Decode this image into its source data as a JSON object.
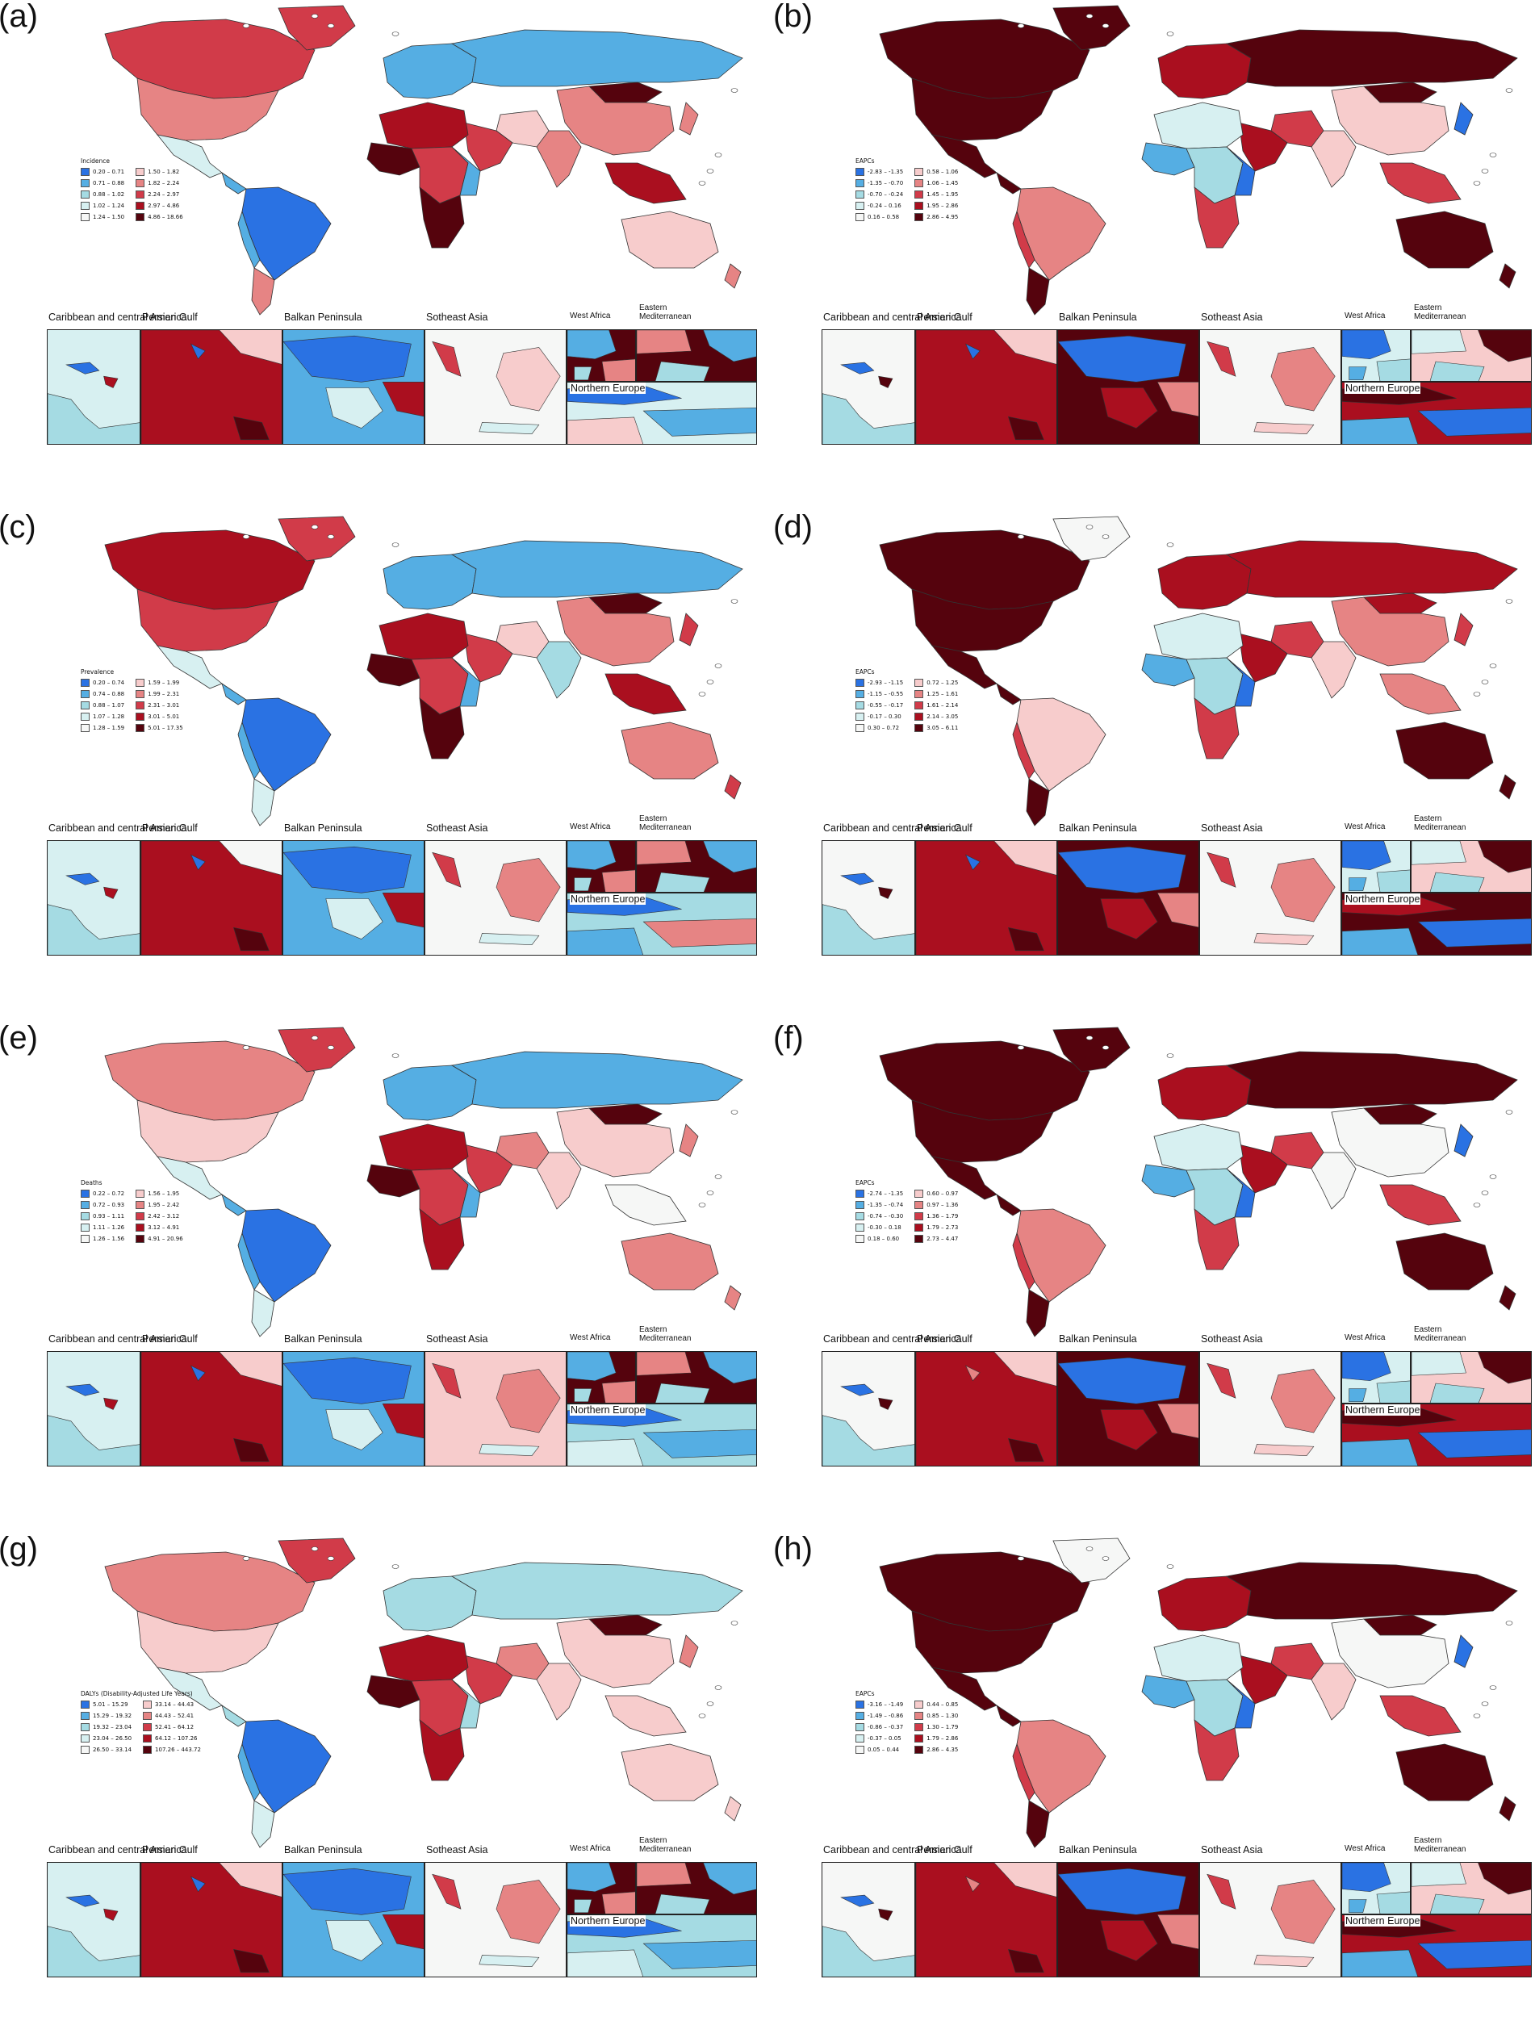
{
  "colors": {
    "blue_scale": [
      "#2a72e3",
      "#55aee3",
      "#a5dbe3",
      "#d7f0f1",
      "#f6f7f6"
    ],
    "red_scale": [
      "#f7cccc",
      "#e68484",
      "#d13b49",
      "#aa0f1f",
      "#55030d"
    ]
  },
  "inset_titles": {
    "caribbean": "Caribbean and central America",
    "persian_gulf": "Persian Gulf",
    "balkan": "Balkan Peninsula",
    "southeast_asia": "Sotheast Asia",
    "west_africa": "West Africa",
    "eastern_med": "Eastern Mediterranean",
    "northern_europe": "Northern Europe"
  },
  "panels": [
    {
      "label": "(a)",
      "legend_title": "Incidence",
      "legend": [
        "0.20 – 0.71",
        "0.71 – 0.88",
        "0.88 – 1.02",
        "1.02 – 1.24",
        "1.24 – 1.50",
        "1.50 – 1.82",
        "1.82 – 2.24",
        "2.24 – 2.97",
        "2.97 – 4.86",
        "4.86 – 18.66"
      ]
    },
    {
      "label": "(b)",
      "legend_title": "EAPCs",
      "legend": [
        "-2.83 – -1.35",
        "-1.35 – -0.70",
        "-0.70 – -0.24",
        "-0.24 – 0.16",
        "0.16 – 0.58",
        "0.58 – 1.06",
        "1.06 – 1.45",
        "1.45 – 1.95",
        "1.95 – 2.86",
        "2.86 – 4.95"
      ]
    },
    {
      "label": "(c)",
      "legend_title": "Prevalence",
      "legend": [
        "0.20 – 0.74",
        "0.74 – 0.88",
        "0.88 – 1.07",
        "1.07 – 1.28",
        "1.28 – 1.59",
        "1.59 – 1.99",
        "1.99 – 2.31",
        "2.31 – 3.01",
        "3.01 – 5.01",
        "5.01 – 17.35"
      ]
    },
    {
      "label": "(d)",
      "legend_title": "EAPCs",
      "legend": [
        "-2.93 – -1.15",
        "-1.15 – -0.55",
        "-0.55 – -0.17",
        "-0.17 – 0.30",
        "0.30 – 0.72",
        "0.72 – 1.25",
        "1.25 – 1.61",
        "1.61 – 2.14",
        "2.14 – 3.05",
        "3.05 – 6.11"
      ]
    },
    {
      "label": "(e)",
      "legend_title": "Deaths",
      "legend": [
        "0.22 – 0.72",
        "0.72 – 0.93",
        "0.93 – 1.11",
        "1.11 – 1.26",
        "1.26 – 1.56",
        "1.56 – 1.95",
        "1.95 – 2.42",
        "2.42 – 3.12",
        "3.12 – 4.91",
        "4.91 – 20.96"
      ]
    },
    {
      "label": "(f)",
      "legend_title": "EAPCs",
      "legend": [
        "-2.74 – -1.35",
        "-1.35 – -0.74",
        "-0.74 – -0.30",
        "-0.30 – 0.18",
        "0.18 – 0.60",
        "0.60 – 0.97",
        "0.97 – 1.36",
        "1.36 – 1.79",
        "1.79 – 2.73",
        "2.73 – 4.47"
      ]
    },
    {
      "label": "(g)",
      "legend_title": "DALYs (Disability-Adjusted Life Years)",
      "legend": [
        "5.01 – 15.29",
        "15.29 – 19.32",
        "19.32 – 23.04",
        "23.04 – 26.50",
        "26.50 – 33.14",
        "33.14 – 44.43",
        "44.43 – 52.41",
        "52.41 – 64.12",
        "64.12 – 107.26",
        "107.26 – 443.72"
      ]
    },
    {
      "label": "(h)",
      "legend_title": "EAPCs",
      "legend": [
        "-3.16 – -1.49",
        "-1.49 – -0.86",
        "-0.86 – -0.37",
        "-0.37 – 0.05",
        "0.05 – 0.44",
        "0.44 – 0.85",
        "0.85 – 1.30",
        "1.30 – 1.79",
        "1.79 – 2.86",
        "2.86 – 4.35"
      ]
    }
  ],
  "region_fill_levels": {
    "_note_skip": true
  }
}
